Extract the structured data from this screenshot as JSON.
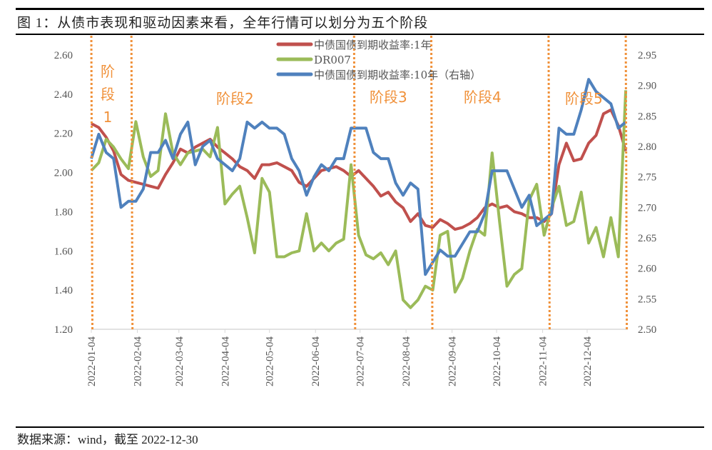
{
  "title": "图 1：从债市表现和驱动因素来看，全年行情可以划分为五个阶段",
  "source": "数据来源：wind，截至 2022-12-30",
  "chart_data": {
    "type": "line",
    "title": "",
    "xlabel": "",
    "ylabel": "",
    "y_left": {
      "range": [
        1.2,
        2.6
      ],
      "ticks": [
        "1.20",
        "1.40",
        "1.60",
        "1.80",
        "2.00",
        "2.20",
        "2.40",
        "2.60"
      ]
    },
    "y_right": {
      "range": [
        2.5,
        2.95
      ],
      "ticks": [
        "2.50",
        "2.55",
        "2.60",
        "2.65",
        "2.70",
        "2.75",
        "2.80",
        "2.85",
        "2.90",
        "2.95"
      ]
    },
    "x_ticks": [
      "2022-01-04",
      "2022-02-04",
      "2022-03-04",
      "2022-04-04",
      "2022-05-04",
      "2022-06-04",
      "2022-07-04",
      "2022-08-04",
      "2022-09-04",
      "2022-10-04",
      "2022-11-04",
      "2022-12-04"
    ],
    "grid": false,
    "legend_position": "top-center",
    "x": [
      "2022-01-04",
      "2022-01-09",
      "2022-01-14",
      "2022-01-19",
      "2022-01-24",
      "2022-01-29",
      "2022-02-03",
      "2022-02-08",
      "2022-02-13",
      "2022-02-18",
      "2022-02-23",
      "2022-02-28",
      "2022-03-05",
      "2022-03-10",
      "2022-03-15",
      "2022-03-20",
      "2022-03-25",
      "2022-03-30",
      "2022-04-04",
      "2022-04-09",
      "2022-04-14",
      "2022-04-19",
      "2022-04-24",
      "2022-04-29",
      "2022-05-04",
      "2022-05-09",
      "2022-05-14",
      "2022-05-19",
      "2022-05-24",
      "2022-05-29",
      "2022-06-03",
      "2022-06-08",
      "2022-06-13",
      "2022-06-18",
      "2022-06-23",
      "2022-06-28",
      "2022-07-03",
      "2022-07-08",
      "2022-07-13",
      "2022-07-18",
      "2022-07-23",
      "2022-07-28",
      "2022-08-02",
      "2022-08-07",
      "2022-08-12",
      "2022-08-17",
      "2022-08-22",
      "2022-08-27",
      "2022-09-01",
      "2022-09-06",
      "2022-09-11",
      "2022-09-16",
      "2022-09-21",
      "2022-09-26",
      "2022-10-01",
      "2022-10-06",
      "2022-10-11",
      "2022-10-16",
      "2022-10-21",
      "2022-10-26",
      "2022-10-31",
      "2022-11-05",
      "2022-11-10",
      "2022-11-15",
      "2022-11-20",
      "2022-11-25",
      "2022-11-30",
      "2022-12-05",
      "2022-12-10",
      "2022-12-15",
      "2022-12-20",
      "2022-12-25",
      "2022-12-30"
    ],
    "series": [
      {
        "name": "中债国债到期收益率:1年",
        "axis": "left",
        "color": "#c0504d",
        "values": [
          2.25,
          2.23,
          2.18,
          2.11,
          1.99,
          1.96,
          1.95,
          1.94,
          1.93,
          1.92,
          1.99,
          2.05,
          2.12,
          2.1,
          2.13,
          2.15,
          2.17,
          2.13,
          2.1,
          2.07,
          2.03,
          2.01,
          1.97,
          2.04,
          2.04,
          2.05,
          2.03,
          2.01,
          1.95,
          1.93,
          1.97,
          2.01,
          2.02,
          2.03,
          2.01,
          1.98,
          2.01,
          1.97,
          1.93,
          1.88,
          1.9,
          1.85,
          1.82,
          1.75,
          1.79,
          1.73,
          1.72,
          1.76,
          1.74,
          1.71,
          1.72,
          1.74,
          1.77,
          1.82,
          1.84,
          1.82,
          1.83,
          1.8,
          1.79,
          1.77,
          1.77,
          1.75,
          1.79,
          2.04,
          2.15,
          2.06,
          2.07,
          2.15,
          2.19,
          2.3,
          2.32,
          2.24,
          2.11
        ]
      },
      {
        "name": "DR007",
        "axis": "left",
        "color": "#9bbb59",
        "values": [
          2.01,
          2.05,
          2.17,
          2.13,
          2.07,
          2.02,
          2.26,
          2.08,
          1.98,
          2.01,
          2.3,
          2.1,
          2.04,
          2.1,
          2.11,
          2.12,
          2.08,
          2.23,
          1.84,
          1.89,
          1.93,
          1.77,
          1.59,
          1.97,
          1.9,
          1.57,
          1.57,
          1.59,
          1.6,
          1.79,
          1.6,
          1.64,
          1.6,
          1.64,
          1.66,
          2.04,
          1.68,
          1.58,
          1.56,
          1.59,
          1.53,
          1.6,
          1.35,
          1.31,
          1.35,
          1.42,
          1.4,
          1.68,
          1.7,
          1.39,
          1.46,
          1.6,
          1.71,
          1.68,
          2.1,
          1.75,
          1.42,
          1.48,
          1.51,
          1.86,
          1.94,
          1.68,
          1.82,
          1.93,
          1.73,
          1.75,
          1.9,
          1.64,
          1.72,
          1.57,
          1.77,
          1.57,
          2.42
        ]
      },
      {
        "name": "中债国债到期收益率:10年（右轴）",
        "axis": "right",
        "color": "#4f81bd",
        "values": [
          2.78,
          2.82,
          2.79,
          2.78,
          2.7,
          2.71,
          2.71,
          2.73,
          2.79,
          2.79,
          2.81,
          2.78,
          2.82,
          2.84,
          2.77,
          2.8,
          2.81,
          2.78,
          2.77,
          2.76,
          2.78,
          2.84,
          2.83,
          2.84,
          2.83,
          2.83,
          2.82,
          2.78,
          2.76,
          2.72,
          2.75,
          2.77,
          2.76,
          2.78,
          2.78,
          2.83,
          2.83,
          2.83,
          2.79,
          2.78,
          2.78,
          2.74,
          2.72,
          2.74,
          2.73,
          2.59,
          2.61,
          2.63,
          2.62,
          2.62,
          2.64,
          2.66,
          2.66,
          2.69,
          2.76,
          2.76,
          2.76,
          2.73,
          2.7,
          2.72,
          2.67,
          2.68,
          2.69,
          2.83,
          2.82,
          2.82,
          2.86,
          2.91,
          2.89,
          2.88,
          2.87,
          2.83,
          2.84
        ]
      }
    ],
    "phase_dividers": [
      "2022-01-04",
      "2022-01-31",
      "2022-06-30",
      "2022-08-21",
      "2022-11-08",
      "2022-12-30"
    ],
    "phase_divider_color": "#f0913a",
    "annotations": [
      "阶段1",
      "阶段2",
      "阶段3",
      "阶段4",
      "阶段5"
    ]
  }
}
